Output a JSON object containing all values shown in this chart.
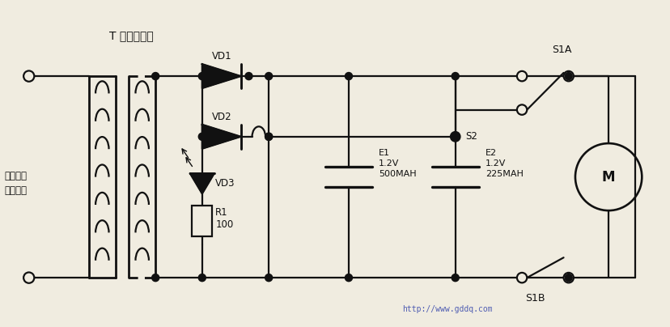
{
  "bg_color": "#f0ece0",
  "line_color": "#111111",
  "text_color": "#111111",
  "title": "T 电源变压器",
  "label_ac": "交流电源\n电压输入",
  "label_vd1": "VD1",
  "label_vd2": "VD2",
  "label_vd3": "VD3",
  "label_r1": "R1\n100",
  "label_e1": "E1\n1.2V\n500MAH",
  "label_e2": "E2\n1.2V\n225MAH",
  "label_s1a": "S1A",
  "label_s2": "S2",
  "label_s1b": "S1B",
  "label_m": "M",
  "watermark": "http://www.gddq.com",
  "fig_width": 8.29,
  "fig_height": 4.04,
  "dpi": 100
}
